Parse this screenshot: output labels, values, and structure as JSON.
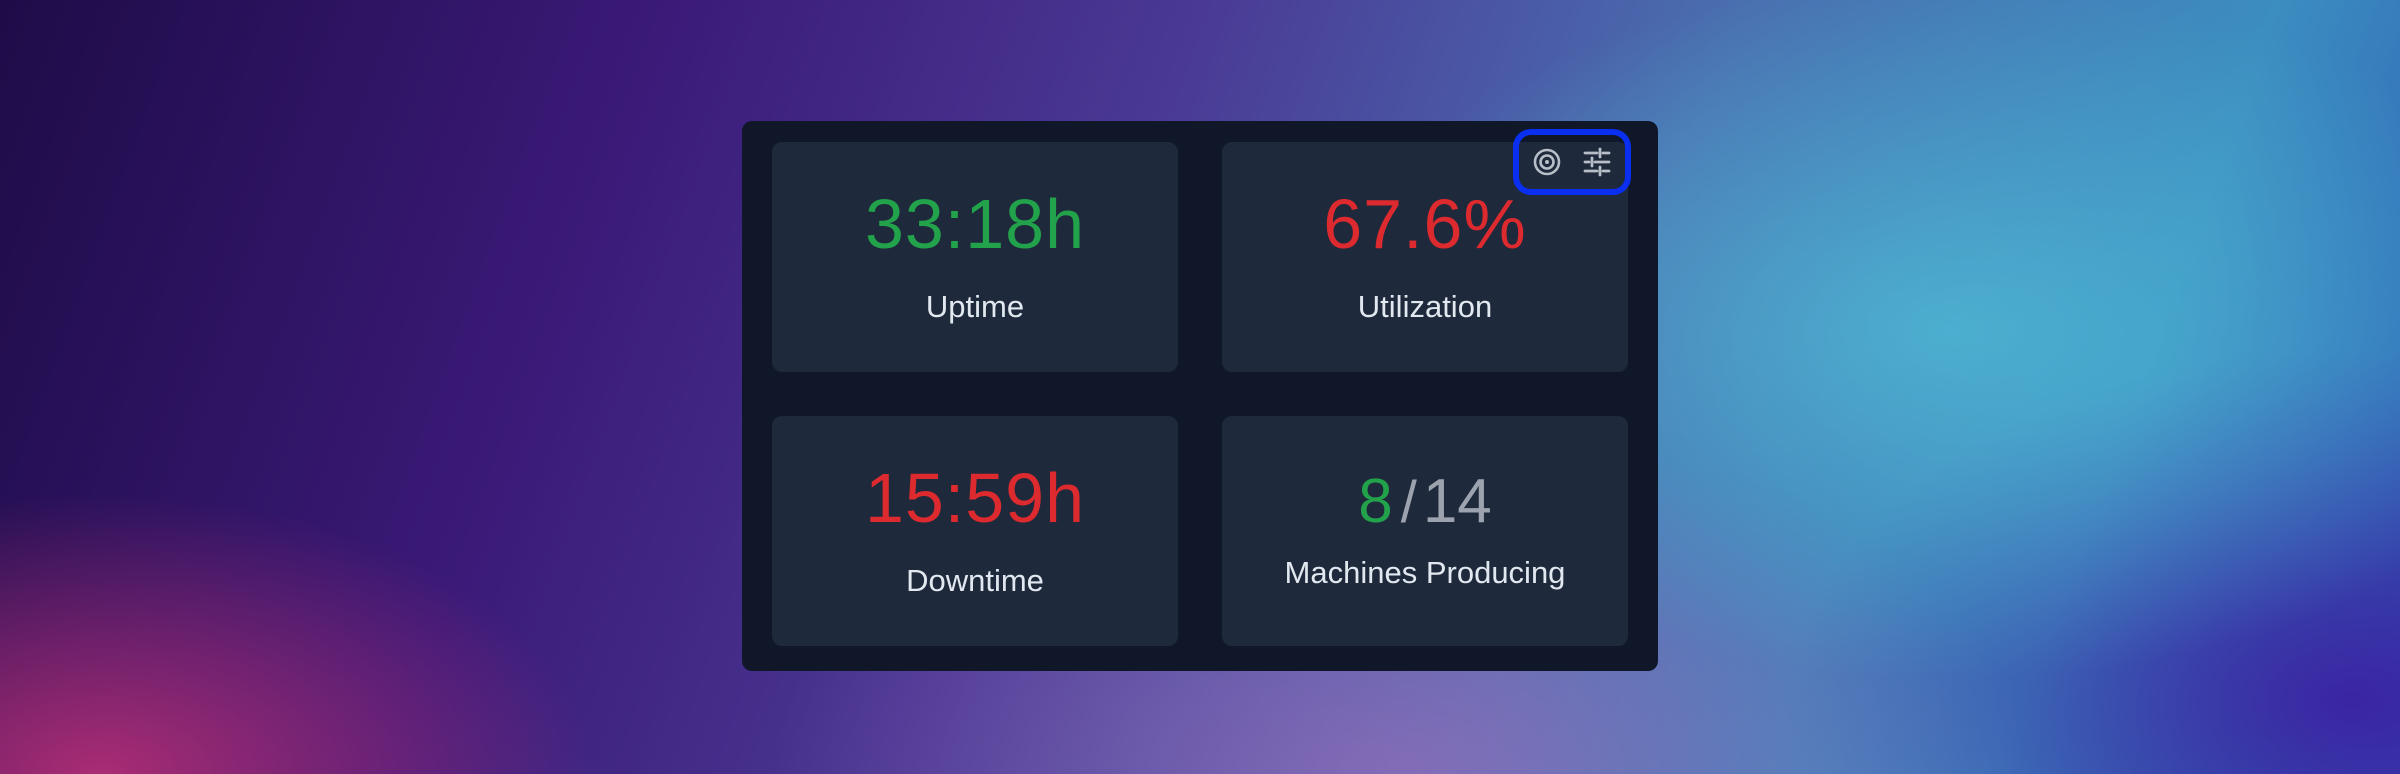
{
  "metrics": [
    {
      "value": "33:18h",
      "label": "Uptime",
      "status": "good"
    },
    {
      "value": "67.6%",
      "label": "Utilization",
      "status": "bad"
    },
    {
      "value": "15:59h",
      "label": "Downtime",
      "status": "bad"
    },
    {
      "producing": "8",
      "slash": "/",
      "total": "14",
      "label": "Machines Producing"
    }
  ],
  "toolbar": {
    "icons": [
      "target-icon",
      "sliders-icon"
    ],
    "highlight_color": "#0a2ff0"
  },
  "colors": {
    "good": "#22a24a",
    "bad": "#dc2a2f",
    "card": "#1e293b",
    "panel": "#0f1729"
  }
}
